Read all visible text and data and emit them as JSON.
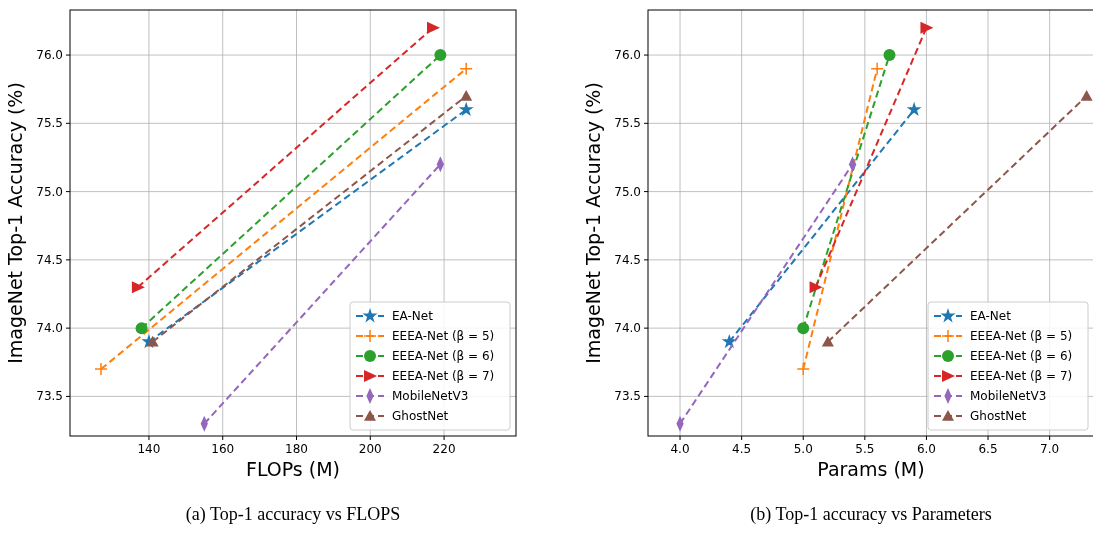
{
  "chart_data": [
    {
      "type": "line",
      "title": "(a) Top-1 accuracy vs FLOPS",
      "xlabel": "FLOPs (M)",
      "ylabel": "ImageNet Top-1 Accuracy (%)",
      "xlim": [
        118.6,
        239.5
      ],
      "xticks": [
        140,
        160,
        180,
        200,
        220
      ],
      "ylim": [
        73.21,
        76.33
      ],
      "yticks": [
        {
          "value": 73.5,
          "label": "73.5"
        },
        {
          "value": 74,
          "label": "74.0"
        },
        {
          "value": 74.5,
          "label": "74.5"
        },
        {
          "value": 75,
          "label": "75.0"
        },
        {
          "value": 75.5,
          "label": "75.5"
        },
        {
          "value": 76,
          "label": "76.0"
        }
      ],
      "grid": true,
      "legend": "bottom right",
      "line_style": "dashed",
      "series": [
        {
          "name": "EA-Net",
          "color": "#1f77b4",
          "marker": "star",
          "x": [
            140,
            226
          ],
          "values": [
            73.9,
            75.6
          ]
        },
        {
          "name": "EEEA-Net (β = 5)",
          "color": "#ff7f0e",
          "marker": "cross",
          "x": [
            127,
            226
          ],
          "values": [
            73.7,
            75.9
          ]
        },
        {
          "name": "EEEA-Net (β = 6)",
          "color": "#2ca02c",
          "marker": "circle",
          "x": [
            138,
            219
          ],
          "values": [
            74.0,
            76.0
          ]
        },
        {
          "name": "EEEA-Net (β = 7)",
          "color": "#d62728",
          "marker": "triangle-right",
          "x": [
            137,
            217
          ],
          "values": [
            74.3,
            76.2
          ]
        },
        {
          "name": "MobileNetV3",
          "color": "#9467bd",
          "marker": "diamond",
          "x": [
            155,
            219
          ],
          "values": [
            73.3,
            75.2
          ]
        },
        {
          "name": "GhostNet",
          "color": "#8c564b",
          "marker": "triangle",
          "x": [
            141,
            226
          ],
          "values": [
            73.9,
            75.7
          ]
        }
      ]
    },
    {
      "type": "line",
      "title": "(b) Top-1 accuracy vs Parameters",
      "xlabel": "Params (M)",
      "ylabel": "ImageNet Top-1 Accuracy (%)",
      "xlim": [
        3.74,
        7.36
      ],
      "xticks": [
        {
          "value": 4,
          "label": "4.0"
        },
        {
          "value": 4.5,
          "label": "4.5"
        },
        {
          "value": 5,
          "label": "5.0"
        },
        {
          "value": 5.5,
          "label": "5.5"
        },
        {
          "value": 6,
          "label": "6.0"
        },
        {
          "value": 6.5,
          "label": "6.5"
        },
        {
          "value": 7,
          "label": "7.0"
        }
      ],
      "ylim": [
        73.21,
        76.33
      ],
      "yticks": [
        {
          "value": 73.5,
          "label": "73.5"
        },
        {
          "value": 74,
          "label": "74.0"
        },
        {
          "value": 74.5,
          "label": "74.5"
        },
        {
          "value": 75,
          "label": "75.0"
        },
        {
          "value": 75.5,
          "label": "75.5"
        },
        {
          "value": 76,
          "label": "76.0"
        }
      ],
      "grid": true,
      "legend": "bottom right",
      "line_style": "dashed",
      "series": [
        {
          "name": "EA-Net",
          "color": "#1f77b4",
          "marker": "star",
          "x": [
            4.4,
            5.9
          ],
          "values": [
            73.9,
            75.6
          ]
        },
        {
          "name": "EEEA-Net (β = 5)",
          "color": "#ff7f0e",
          "marker": "cross",
          "x": [
            5.0,
            5.6
          ],
          "values": [
            73.7,
            75.9
          ]
        },
        {
          "name": "EEEA-Net (β = 6)",
          "color": "#2ca02c",
          "marker": "circle",
          "x": [
            5.0,
            5.7
          ],
          "values": [
            74.0,
            76.0
          ]
        },
        {
          "name": "EEEA-Net (β = 7)",
          "color": "#d62728",
          "marker": "triangle-right",
          "x": [
            5.1,
            6.0
          ],
          "values": [
            74.3,
            76.2
          ]
        },
        {
          "name": "MobileNetV3",
          "color": "#9467bd",
          "marker": "diamond",
          "x": [
            4.0,
            5.4
          ],
          "values": [
            73.3,
            75.2
          ]
        },
        {
          "name": "GhostNet",
          "color": "#8c564b",
          "marker": "triangle",
          "x": [
            5.2,
            7.3
          ],
          "values": [
            73.9,
            75.7
          ]
        }
      ]
    }
  ]
}
